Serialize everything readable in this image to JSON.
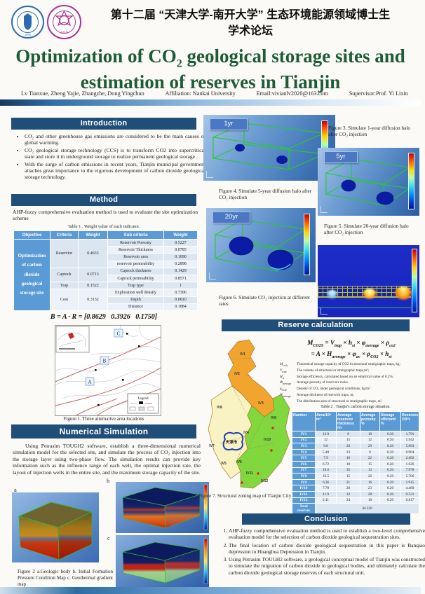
{
  "palette": {
    "header_bar": "#1f4e79",
    "table_blue": "#5b9bd5",
    "table_light": "#dce6f1",
    "title_green": "#1e5c38",
    "map_orange": "#f2a52e",
    "map_yellow": "#f9f3c4",
    "map_green": "#80d83e",
    "wireframe_green": "#28c838",
    "figure_bg_blue": "#3f74b5"
  },
  "page": {
    "forum_title_line1": "第十二届 “天津大学-南开大学” 生态环境能源领域博士生",
    "forum_title_line2": "学术论坛",
    "title_part1": "Optimization of CO",
    "title_sub": "2",
    "title_part2": " geological storage sites and",
    "title_line2": "estimation of reserves in Tianjin",
    "authors": "Lv Tianxue, Zheng Yajie, Zhangzhe, Dong Yingchun",
    "affiliation": "Affiliation: Nankai University",
    "email": "Email:vivianlv2020@163.com",
    "supervisor": "Supervisor:Prof. Yi Lixin"
  },
  "logos": {
    "tianjin_year": "1895",
    "nankai_year": "1919"
  },
  "intro": {
    "title": "Introduction",
    "bullets": [
      "CO₂ and other greenhouse gas emissions are considered to be the main causes of global warming.",
      "CO₂ geological storage technology (CCS) is to transform CO2 into supercritical state and store it in underground storage to realize permanent geological storage .",
      "With the surge of carbon emissions in recent years, Tianjin municipal government attaches great importance to the vigorous development of carbon dioxide geological storage technology."
    ]
  },
  "method": {
    "title": "Method",
    "text": "AHP-fuzzy comprehensive evaluation method is used to evaluate the site optimization scheme",
    "table1": {
      "caption": "Table 1 . Weight value of each indicator.",
      "headers": [
        "Objective",
        "Criteria",
        "Weight",
        "Sub criteria",
        "Weight"
      ],
      "objective": "Optimization of carbon dioxide geological storage site",
      "groups": [
        {
          "criteria": "Reservior",
          "weight": "0.4633",
          "rows": [
            [
              "Reservoir Porosity",
              "0.5227"
            ],
            [
              "Reservoir Thickness",
              "0.0785"
            ],
            [
              "Reservoir area",
              "0.1090"
            ],
            [
              "reservoir permeability",
              "0.2898"
            ]
          ]
        },
        {
          "criteria": "Caprock",
          "weight": "0.0713",
          "rows": [
            [
              "Caprock thickness",
              "0.1429"
            ],
            [
              "Caprock permeability",
              "0.8571"
            ]
          ]
        },
        {
          "criteria": "Trap",
          "weight": "0.1522",
          "rows": [
            [
              "Trap type",
              "1"
            ]
          ]
        },
        {
          "criteria": "Cost",
          "weight": "0.3132",
          "rows": [
            [
              "Exploration well density",
              "0.7306"
            ],
            [
              "Depth",
              "0.0810"
            ],
            [
              "Distance",
              "0.1884"
            ]
          ]
        }
      ]
    },
    "formula": "B = A · R = [0.8629   0.3926   0.1750]",
    "figure1_caption": "Figure 1. Three alternative area locations",
    "area_labels": [
      "A",
      "B",
      "C"
    ],
    "legend_title": "Legend"
  },
  "simulation": {
    "title": "Numerical Simulation",
    "text": "Using Petrasim TOUGH2 software, establish a three-dimensional numerical simulation model for the selected site, and simulate the process of CO₂ injection into the storage layer using two-phase flow. The simulation results can provide key information such as the influence range of each well, the optimal injection rate, the layout of injection wells in the entire site, and the maximum storage capacity of the site.",
    "sub_labels": [
      "a",
      "b",
      "c"
    ],
    "figure2_caption": "Figure 2  a.Geologic body b. Initial Formation Pressure Condition Map c. Geothermal gradient map"
  },
  "diffusion": {
    "labels": [
      "1yr",
      "5yr",
      "20yr"
    ],
    "caption3": "Figure 3. Simulate 1-year diffusion halo after CO₂ injection",
    "caption4": "Figure 4. Simulate 5-year diffusion halo after CO₂ injection",
    "caption5": "Figure 5. Simulate 20-year diffusion halo after CO₂ injection",
    "caption6": "Figure 6. Simulate CO₂ injection at different rates"
  },
  "reserve": {
    "title": "Reserve calculation",
    "formula1_parts": [
      [
        "M",
        "CO2S"
      ],
      [
        " = V",
        "trap"
      ],
      [
        " × h",
        "st"
      ],
      [
        " × φ",
        "average"
      ],
      [
        " × ρ",
        "co2"
      ]
    ],
    "formula2_parts": [
      [
        "= A × H",
        "average"
      ],
      [
        " × φ",
        "av"
      ],
      [
        " × ρ",
        "CO2"
      ],
      [
        " × h",
        "st"
      ]
    ],
    "definitions": [
      {
        "sym": [
          "M",
          "co2s"
        ],
        "text": "Theoretical storage capacity of CO2 in structural stratigraphic traps, kg;"
      },
      {
        "sym": [
          "V",
          "trap"
        ],
        "text": "The volume of structural or stratigraphic traps,m³;"
      },
      {
        "sym": [
          "H",
          "st"
        ],
        "text": "Storage efficiency, calculated based on an empirical value of 0.2%;"
      },
      {
        "sym": [
          "Φ",
          "average"
        ],
        "text": "Average porosity of reservoir rocks."
      },
      {
        "sym": [
          "ρ",
          "CO2"
        ],
        "text": "Density of CO₂ under geological conditions, kg/m³"
      },
      {
        "sym": [
          "H",
          "average"
        ],
        "text": "Average thickness of reservoir traps, m;"
      },
      {
        "sym": [
          "A",
          ""
        ],
        "text": "The distribution area of structural or stratigraphic traps, m²,"
      }
    ],
    "zones": [
      "IV1",
      "IV2",
      "IV3",
      "IV4",
      "IV5",
      "IV6",
      "IV7",
      "IV8",
      "IV9",
      "IV10",
      "IV11",
      "IV12"
    ],
    "map_city_label": "天津市",
    "figure7_caption": "Figure 7. Structural zoning map of Tianjin City",
    "table2": {
      "caption": "Table 2 . Tianjin's carbon storage situation.",
      "headers": [
        "Number",
        "Area/10⁸ m²",
        "Average reservoir thickness /m",
        "Average porosity %",
        "Storage efficient/ %",
        "Reserves /10⁸t"
      ],
      "rows": [
        [
          "IV1",
          "13.9",
          "8",
          "18",
          "0.20",
          "1.791"
        ],
        [
          "IV2",
          "12",
          "15",
          "12",
          "0.20",
          "1.942"
        ],
        [
          "IV3",
          "9.8",
          "20",
          "29",
          "0.20",
          "5.093"
        ],
        [
          "IV4",
          "5.48",
          "23",
          "8",
          "0.20",
          "0.904"
        ],
        [
          "IV5",
          "7.9",
          "16",
          "22",
          "0.20",
          "2.492"
        ],
        [
          "IV6",
          "6.72",
          "18",
          "15",
          "0.20",
          "1.626"
        ],
        [
          "IV7",
          "19.6",
          "35",
          "13",
          "0.20",
          "7.978"
        ],
        [
          "IV8",
          "16.5",
          "15",
          "26",
          "0.20",
          "5.766"
        ],
        [
          "IV9",
          "6.36",
          "21",
          "16",
          "0.20",
          "1.915"
        ],
        [
          "IV10",
          "7.78",
          "28",
          "23",
          "0.20",
          "4.489"
        ],
        [
          "IV11",
          "11.9",
          "32",
          "28",
          "0.20",
          "9.521"
        ],
        [
          "IV12",
          "2.11",
          "24",
          "18",
          "0.20",
          "0.817"
        ]
      ],
      "total_label": "Total reserves",
      "total_value": "44.330"
    }
  },
  "conclusion": {
    "title": "Conclusion",
    "items": [
      "AHP-fuzzy comprehensive evaluation method is used to establish a two-level comprehensive evaluation model for the selection of carbon dioxide geological sequestration sites.",
      "The final location of carbon dioxide geological sequestration in this paper is Banqiao depression in Huanghua Depression in Tianjin.",
      "Using Petrasim TOUGH2 software, a geological conceptual model of Tianjin was constructed to simulate the migration of carbon dioxide in geological bodies, and ultimately calculate the carbon dioxide geological storage reserves of each structural unit."
    ]
  }
}
